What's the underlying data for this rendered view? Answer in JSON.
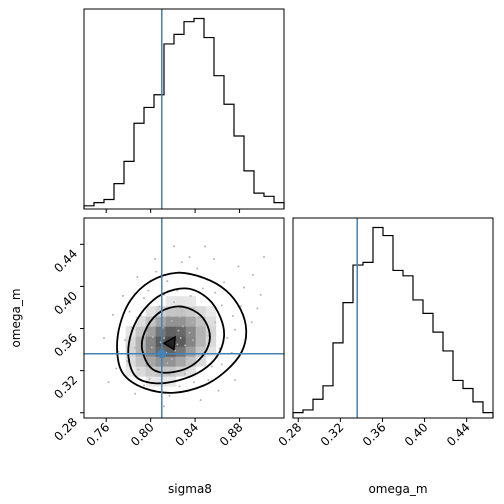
{
  "chart_data": {
    "type": "corner",
    "parameters": [
      "sigma8",
      "omega_m"
    ],
    "truth": {
      "sigma8": 0.81,
      "omega_m": 0.336
    },
    "truth_color": "#4682b4",
    "hist_color": "#000000",
    "panels": [
      {
        "panel": "sigma8_marginal",
        "type": "histogram",
        "xlim": [
          0.74,
          0.92
        ],
        "bins": 20,
        "counts": [
          1,
          2,
          3,
          8,
          15,
          27,
          32,
          36,
          52,
          55,
          59,
          60,
          54,
          42,
          33,
          23,
          12,
          5,
          4,
          2
        ]
      },
      {
        "panel": "omega_m_marginal",
        "type": "histogram",
        "xlim": [
          0.275,
          0.465
        ],
        "bins": 20,
        "counts": [
          2,
          3,
          7,
          12,
          28,
          43,
          57,
          58,
          71,
          68,
          55,
          53,
          44,
          39,
          32,
          25,
          14,
          11,
          6,
          2
        ]
      },
      {
        "panel": "sigma8_vs_omega_m",
        "type": "2d_histogram_contour",
        "xlabel": "sigma8",
        "ylabel": "omega_m",
        "xlim": [
          0.74,
          0.92
        ],
        "ylim": [
          0.275,
          0.465
        ],
        "xticks": [
          "0.76",
          "0.80",
          "0.84",
          "0.88"
        ],
        "yticks": [
          "0.28",
          "0.32",
          "0.36",
          "0.40",
          "0.44"
        ],
        "density_peak": {
          "x": 0.818,
          "y": 0.348
        },
        "contour_levels": [
          [
            [
              0.799,
              0.324
            ],
            [
              0.812,
              0.318
            ],
            [
              0.832,
              0.322
            ],
            [
              0.846,
              0.333
            ],
            [
              0.853,
              0.348
            ],
            [
              0.851,
              0.363
            ],
            [
              0.842,
              0.375
            ],
            [
              0.826,
              0.381
            ],
            [
              0.809,
              0.376
            ],
            [
              0.797,
              0.362
            ],
            [
              0.792,
              0.343
            ]
          ],
          [
            [
              0.787,
              0.314
            ],
            [
              0.804,
              0.308
            ],
            [
              0.826,
              0.311
            ],
            [
              0.846,
              0.32
            ],
            [
              0.86,
              0.334
            ],
            [
              0.866,
              0.352
            ],
            [
              0.863,
              0.37
            ],
            [
              0.852,
              0.388
            ],
            [
              0.833,
              0.398
            ],
            [
              0.811,
              0.393
            ],
            [
              0.794,
              0.378
            ],
            [
              0.783,
              0.357
            ],
            [
              0.78,
              0.333
            ]
          ],
          [
            [
              0.776,
              0.316
            ],
            [
              0.795,
              0.303
            ],
            [
              0.821,
              0.299
            ],
            [
              0.848,
              0.306
            ],
            [
              0.868,
              0.32
            ],
            [
              0.882,
              0.338
            ],
            [
              0.886,
              0.358
            ],
            [
              0.881,
              0.378
            ],
            [
              0.868,
              0.396
            ],
            [
              0.848,
              0.408
            ],
            [
              0.824,
              0.413
            ],
            [
              0.8,
              0.405
            ],
            [
              0.782,
              0.387
            ],
            [
              0.772,
              0.362
            ],
            [
              0.77,
              0.336
            ]
          ]
        ],
        "samples": [
          [
            0.818,
            0.348
          ],
          [
            0.808,
            0.333
          ],
          [
            0.829,
            0.362
          ],
          [
            0.812,
            0.351
          ],
          [
            0.822,
            0.339
          ],
          [
            0.835,
            0.356
          ],
          [
            0.801,
            0.342
          ],
          [
            0.826,
            0.371
          ],
          [
            0.841,
            0.344
          ],
          [
            0.815,
            0.327
          ],
          [
            0.797,
            0.356
          ],
          [
            0.833,
            0.331
          ],
          [
            0.819,
            0.367
          ],
          [
            0.845,
            0.362
          ],
          [
            0.806,
            0.322
          ],
          [
            0.824,
            0.345
          ],
          [
            0.811,
            0.361
          ],
          [
            0.838,
            0.349
          ],
          [
            0.792,
            0.331
          ],
          [
            0.828,
            0.377
          ],
          [
            0.852,
            0.353
          ],
          [
            0.804,
            0.369
          ],
          [
            0.817,
            0.316
          ],
          [
            0.843,
            0.371
          ],
          [
            0.786,
            0.342
          ],
          [
            0.831,
            0.317
          ],
          [
            0.858,
            0.366
          ],
          [
            0.799,
            0.312
          ],
          [
            0.821,
            0.385
          ],
          [
            0.848,
            0.337
          ],
          [
            0.779,
            0.329
          ],
          [
            0.864,
            0.382
          ],
          [
            0.812,
            0.392
          ],
          [
            0.836,
            0.391
          ],
          [
            0.791,
            0.372
          ],
          [
            0.855,
            0.324
          ],
          [
            0.869,
            0.351
          ],
          [
            0.803,
            0.301
          ],
          [
            0.826,
            0.305
          ],
          [
            0.874,
            0.372
          ],
          [
            0.783,
            0.361
          ],
          [
            0.847,
            0.398
          ],
          [
            0.815,
            0.405
          ],
          [
            0.794,
            0.389
          ],
          [
            0.862,
            0.341
          ],
          [
            0.872,
            0.392
          ],
          [
            0.777,
            0.349
          ],
          [
            0.839,
            0.309
          ],
          [
            0.808,
            0.381
          ],
          [
            0.881,
            0.381
          ],
          [
            0.789,
            0.321
          ],
          [
            0.858,
            0.394
          ],
          [
            0.824,
            0.396
          ],
          [
            0.866,
            0.404
          ],
          [
            0.798,
            0.396
          ],
          [
            0.833,
            0.412
          ],
          [
            0.876,
            0.359
          ],
          [
            0.771,
            0.338
          ],
          [
            0.852,
            0.311
          ],
          [
            0.817,
            0.296
          ],
          [
            0.884,
            0.399
          ],
          [
            0.794,
            0.306
          ],
          [
            0.864,
            0.326
          ],
          [
            0.781,
            0.376
          ],
          [
            0.842,
            0.417
          ],
          [
            0.805,
            0.414
          ],
          [
            0.892,
            0.411
          ],
          [
            0.769,
            0.322
          ],
          [
            0.873,
            0.337
          ],
          [
            0.828,
            0.423
          ],
          [
            0.758,
            0.351
          ],
          [
            0.899,
            0.392
          ],
          [
            0.786,
            0.298
          ],
          [
            0.879,
            0.419
          ],
          [
            0.812,
            0.286
          ],
          [
            0.845,
            0.292
          ],
          [
            0.902,
            0.428
          ],
          [
            0.766,
            0.373
          ],
          [
            0.857,
            0.426
          ],
          [
            0.821,
            0.438
          ],
          [
            0.891,
            0.366
          ],
          [
            0.775,
            0.391
          ],
          [
            0.835,
            0.428
          ],
          [
            0.861,
            0.301
          ],
          [
            0.804,
            0.426
          ],
          [
            0.788,
            0.409
          ],
          [
            0.876,
            0.311
          ],
          [
            0.849,
            0.438
          ],
          [
            0.896,
            0.379
          ],
          [
            0.762,
            0.309
          ],
          [
            0.814,
            0.337
          ],
          [
            0.825,
            0.358
          ],
          [
            0.831,
            0.344
          ],
          [
            0.809,
            0.347
          ],
          [
            0.838,
            0.366
          ],
          [
            0.819,
            0.331
          ],
          [
            0.843,
            0.358
          ],
          [
            0.802,
            0.352
          ],
          [
            0.827,
            0.351
          ],
          [
            0.816,
            0.372
          ]
        ]
      }
    ]
  }
}
